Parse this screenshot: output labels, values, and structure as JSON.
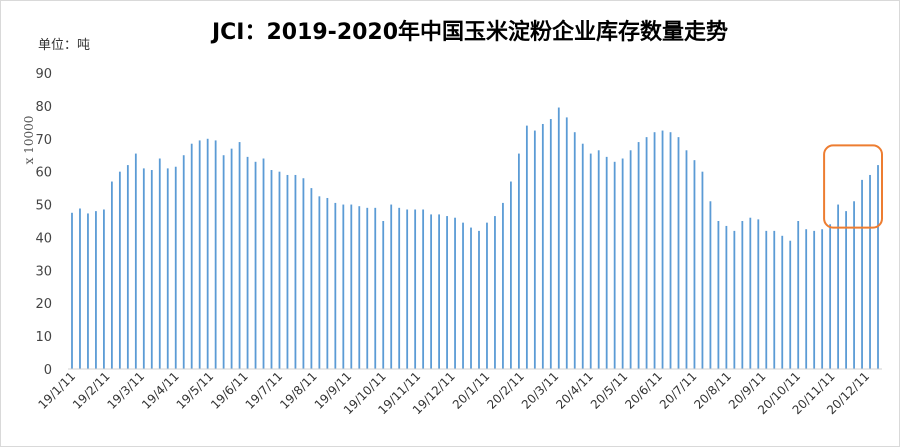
{
  "chart_data": {
    "type": "bar",
    "title": "JCI：2019-2020年中国玉米淀粉企业库存数量走势",
    "unit_label": "单位：吨",
    "ylabel": "x 10000",
    "ylim": [
      0,
      90
    ],
    "yticks": [
      0,
      10,
      20,
      30,
      40,
      50,
      60,
      70,
      80,
      90
    ],
    "x_tick_labels": [
      "19/1/11",
      "19/2/11",
      "19/3/11",
      "19/4/11",
      "19/5/11",
      "19/6/11",
      "19/7/11",
      "19/8/11",
      "19/9/11",
      "19/10/11",
      "19/11/11",
      "19/12/11",
      "20/1/11",
      "20/2/11",
      "20/3/11",
      "20/4/11",
      "20/5/11",
      "20/6/11",
      "20/7/11",
      "20/8/11",
      "20/9/11",
      "20/10/11",
      "20/11/11",
      "20/12/11"
    ],
    "values": [
      47.5,
      48.8,
      47.3,
      48.0,
      48.5,
      57.0,
      60.0,
      62.0,
      65.5,
      61.0,
      60.5,
      64.0,
      61.0,
      61.5,
      65.0,
      68.5,
      69.5,
      70.0,
      69.5,
      65.0,
      67.0,
      69.0,
      64.5,
      63.0,
      64.0,
      60.5,
      60.0,
      59.0,
      59.0,
      58.0,
      55.0,
      52.5,
      52.0,
      50.5,
      50.0,
      50.0,
      49.5,
      49.0,
      49.0,
      45.0,
      50.0,
      49.0,
      48.5,
      48.5,
      48.5,
      47.0,
      47.0,
      46.5,
      46.0,
      44.5,
      43.0,
      42.0,
      44.5,
      46.5,
      50.5,
      57.0,
      65.5,
      74.0,
      72.5,
      74.5,
      76.0,
      79.5,
      76.5,
      72.0,
      68.5,
      65.5,
      66.5,
      64.5,
      63.0,
      64.0,
      66.5,
      69.0,
      70.5,
      72.0,
      72.5,
      72.0,
      70.5,
      66.5,
      63.5,
      60.0,
      51.0,
      45.0,
      43.5,
      42.0,
      45.0,
      46.0,
      45.5,
      42.0,
      42.0,
      40.5,
      39.0,
      45.0,
      42.5,
      42.0,
      42.5,
      44.0,
      50.0,
      48.0,
      51.0,
      57.5,
      59.0,
      62.0
    ],
    "bar_color": "#5B9BD5",
    "grid": false,
    "annotation": {
      "shape": "rounded-rectangle",
      "color": "#ED7D31",
      "target": "last 7 bars (20/11–20/12)"
    }
  }
}
